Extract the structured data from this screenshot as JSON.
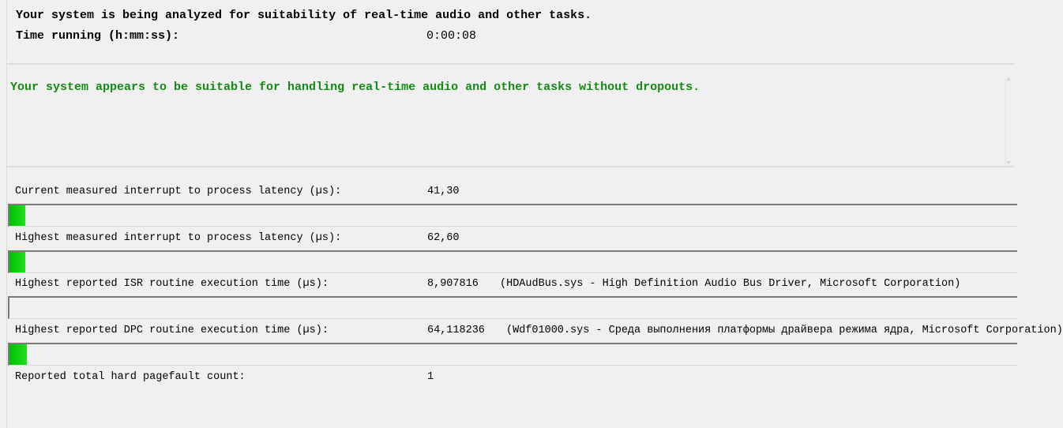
{
  "header": {
    "analyzing_text": "Your system is being analyzed for suitability of real-time audio and other tasks.",
    "time_label": "Time running (h:mm:ss):",
    "time_value": "0:00:08"
  },
  "verdict": {
    "text": "Your system appears to be suitable for handling real-time audio and other tasks without dropouts.",
    "color": "#138a13"
  },
  "metrics": [
    {
      "label": "Current measured interrupt to process latency (µs):",
      "value": "41,30",
      "detail": "",
      "bar_fraction": 0.016
    },
    {
      "label": "Highest measured interrupt to process latency (µs):",
      "value": "62,60",
      "detail": "",
      "bar_fraction": 0.016
    },
    {
      "label": "Highest reported ISR routine execution time (µs):",
      "value": "8,907816",
      "detail": "(HDAudBus.sys - High Definition Audio Bus Driver, Microsoft Corporation)",
      "bar_fraction": 0
    },
    {
      "label": "Highest reported DPC routine execution time (µs):",
      "value": "64,118236",
      "detail": "(Wdf01000.sys - Среда выполнения платформы драйвера режима ядра, Microsoft Corporation)",
      "bar_fraction": 0.017
    },
    {
      "label": "Reported total hard pagefault count:",
      "value": "1",
      "detail": ""
    }
  ],
  "colors": {
    "bar_fill": "#10d010",
    "background": "#f0f0f0"
  },
  "icons": {
    "scroll_up": "chevron-up-icon",
    "scroll_down": "chevron-down-icon"
  }
}
